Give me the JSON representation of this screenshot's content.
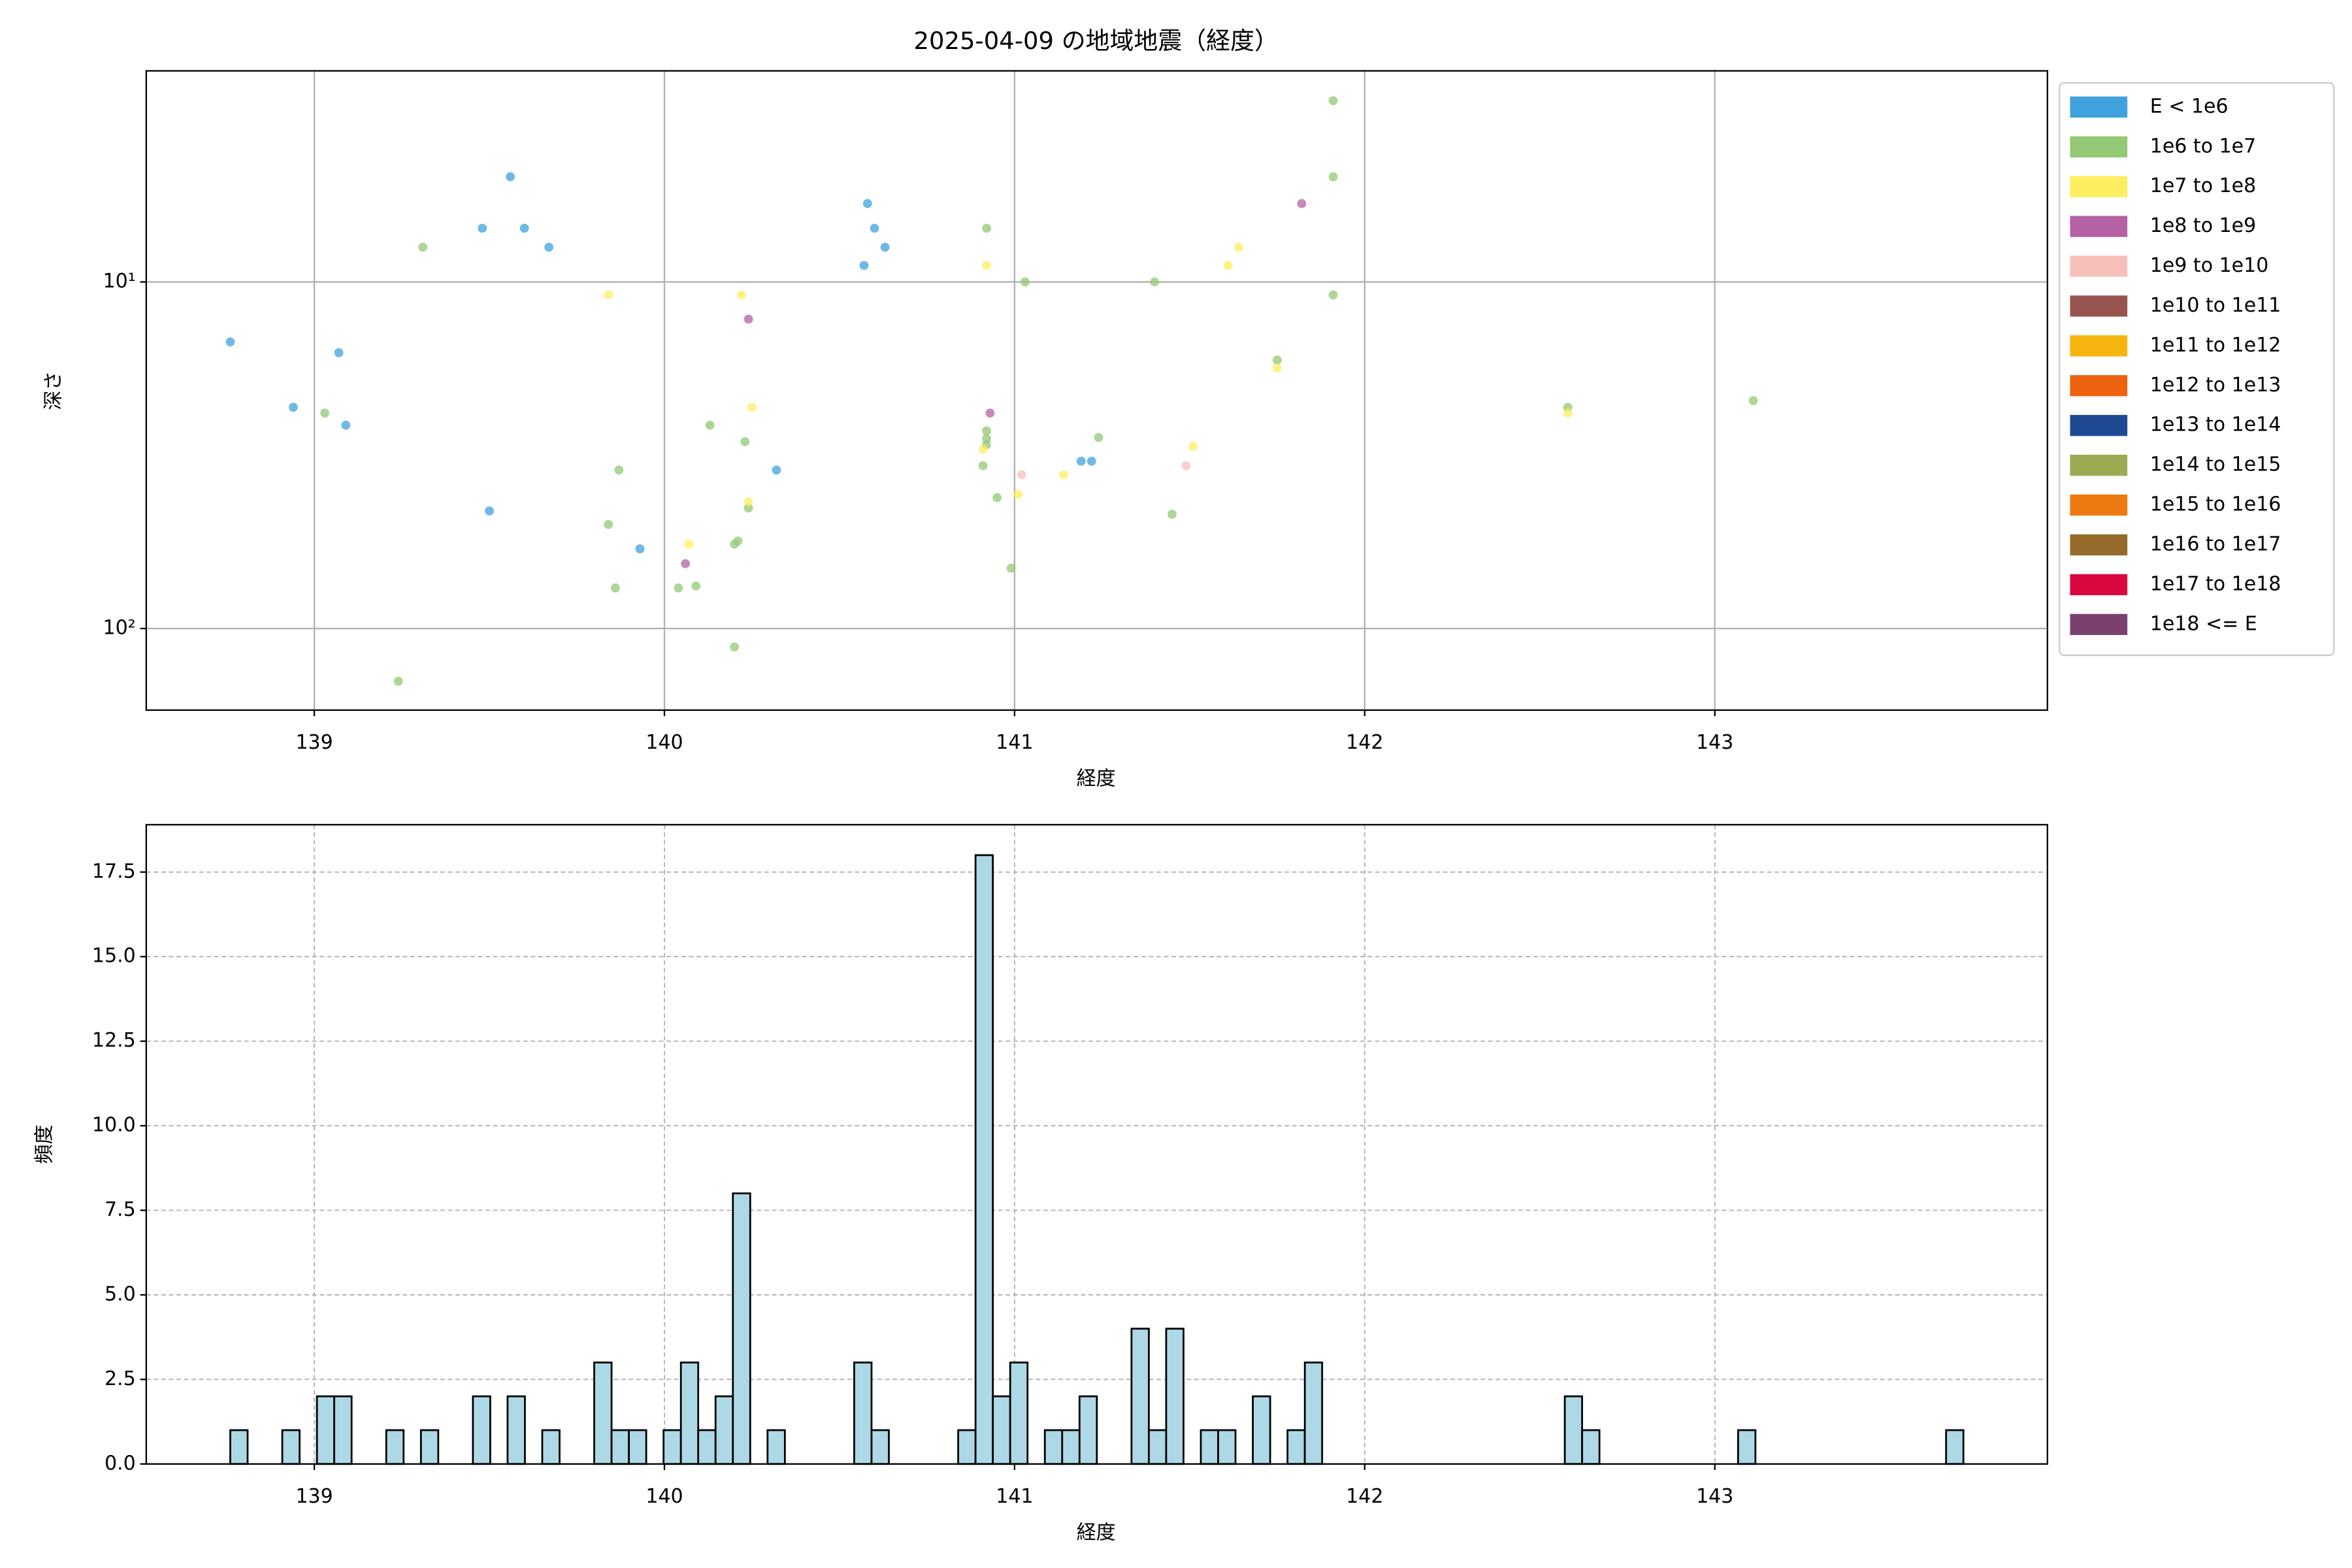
{
  "chart_data": [
    {
      "type": "scatter",
      "title": "2025-04-09 の地域地震（経度）",
      "x_label": "経度",
      "y_label": "深さ",
      "xlim": [
        138.52,
        143.95
      ],
      "xticks": [
        139,
        140,
        141,
        142,
        143
      ],
      "ylim": [
        2.46,
        172
      ],
      "y_log": true,
      "y_inverted": true,
      "yticks": [
        {
          "value": 10,
          "label": "10¹"
        },
        {
          "value": 100,
          "label": "10²"
        }
      ],
      "grid": true,
      "legend": "outside-right",
      "series": [
        {
          "name": "E < 1e6",
          "color": "#3fa2dd",
          "x": [
            138.76,
            138.94,
            139.07,
            139.09,
            139.48,
            139.56,
            139.6,
            139.67,
            139.5,
            139.93,
            140.32,
            140.58,
            140.57,
            140.6,
            140.63,
            141.19,
            141.22
          ],
          "values": [
            14.9,
            23.0,
            16.0,
            25.9,
            7.0,
            4.97,
            7.0,
            7.94,
            45.8,
            58.9,
            34.9,
            5.94,
            8.96,
            7.0,
            7.94,
            32.9,
            32.9
          ]
        },
        {
          "name": "1e6 to 1e7",
          "color": "#93c874",
          "x": [
            139.03,
            139.31,
            139.84,
            139.86,
            139.87,
            139.24,
            140.04,
            140.09,
            140.13,
            140.2,
            140.21,
            140.2,
            140.23,
            140.24,
            140.92,
            140.92,
            140.92,
            140.92,
            140.91,
            140.95,
            140.99,
            141.03,
            141.24,
            141.4,
            141.45,
            141.75,
            141.91,
            141.91,
            141.91,
            142.58,
            143.11
          ],
          "values": [
            23.9,
            7.94,
            50.1,
            76.4,
            34.9,
            142,
            76.4,
            75.4,
            25.9,
            57.1,
            55.9,
            113,
            28.9,
            44.9,
            7.0,
            26.9,
            28.3,
            29.5,
            33.9,
            41.9,
            67.0,
            10,
            28.1,
            10,
            46.8,
            16.8,
            3.0,
            4.97,
            10.9,
            23.0,
            22.0
          ]
        },
        {
          "name": "1e7 to 1e8",
          "color": "#fdee5f",
          "x": [
            139.84,
            140.07,
            140.22,
            140.25,
            140.24,
            140.92,
            140.91,
            141.01,
            141.14,
            141.51,
            141.61,
            141.64,
            141.75,
            142.58
          ],
          "values": [
            10.9,
            57.1,
            10.9,
            23.0,
            43.1,
            8.96,
            30.4,
            41.0,
            36.0,
            29.8,
            8.96,
            7.94,
            17.7,
            23.9
          ]
        },
        {
          "name": "1e8 to 1e9",
          "color": "#b462a4",
          "x": [
            140.24,
            140.06,
            140.93,
            141.82
          ],
          "values": [
            12.8,
            65.0,
            23.9,
            5.94
          ]
        },
        {
          "name": "1e9 to 1e10",
          "color": "#f6c0b9",
          "x": [
            141.02,
            141.49
          ],
          "values": [
            36.0,
            33.9
          ]
        },
        {
          "name": "1e10 to 1e11",
          "color": "#985550",
          "x": [],
          "values": []
        },
        {
          "name": "1e11 to 1e12",
          "color": "#f6b50e",
          "x": [],
          "values": []
        },
        {
          "name": "1e12 to 1e13",
          "color": "#ed620e",
          "x": [],
          "values": []
        },
        {
          "name": "1e13 to 1e14",
          "color": "#1f4a93",
          "x": [],
          "values": []
        },
        {
          "name": "1e14 to 1e15",
          "color": "#9aab52",
          "x": [],
          "values": []
        },
        {
          "name": "1e15 to 1e16",
          "color": "#ec7a10",
          "x": [],
          "values": []
        },
        {
          "name": "1e16 to 1e17",
          "color": "#956b2b",
          "x": [],
          "values": []
        },
        {
          "name": "1e17 to 1e18",
          "color": "#d9083e",
          "x": [],
          "values": []
        },
        {
          "name": "1e18 <= E",
          "color": "#7b416e",
          "x": [],
          "values": []
        }
      ]
    },
    {
      "type": "histogram",
      "x_label": "経度",
      "y_label": "頻度",
      "color": "#add8e6",
      "edge_color": "#000000",
      "xlim": [
        138.52,
        143.95
      ],
      "xticks": [
        139,
        140,
        141,
        142,
        143
      ],
      "ylim": [
        0,
        18.9
      ],
      "yticks": [
        {
          "value": 0,
          "label": "0.0"
        },
        2.5,
        {
          "value": 5,
          "label": "5.0"
        },
        7.5,
        {
          "value": 10,
          "label": "10.0"
        },
        12.5,
        {
          "value": 15,
          "label": "15.0"
        },
        17.5
      ],
      "grid": true,
      "bins": [
        138.76,
        138.8095,
        138.859,
        138.9085,
        138.958,
        139.0075,
        139.057,
        139.1065,
        139.156,
        139.2055,
        139.255,
        139.3045,
        139.354,
        139.4035,
        139.453,
        139.5025,
        139.552,
        139.6015,
        139.651,
        139.7005,
        139.75,
        139.7995,
        139.849,
        139.8985,
        139.948,
        139.9975,
        140.047,
        140.0965,
        140.146,
        140.1955,
        140.245,
        140.2945,
        140.344,
        140.3935,
        140.443,
        140.4925,
        140.542,
        140.5915,
        140.641,
        140.6905,
        140.74,
        140.7895,
        140.839,
        140.8885,
        140.938,
        140.9875,
        141.037,
        141.0865,
        141.136,
        141.1855,
        141.235,
        141.2845,
        141.334,
        141.3835,
        141.433,
        141.4825,
        141.532,
        141.5815,
        141.631,
        141.6805,
        141.73,
        141.7795,
        141.829,
        141.8785,
        141.928,
        141.9775,
        142.027,
        142.0765,
        142.126,
        142.1755,
        142.225,
        142.2745,
        142.324,
        142.3735,
        142.423,
        142.4725,
        142.522,
        142.5715,
        142.621,
        142.6705,
        142.72,
        142.7695,
        142.819,
        142.8685,
        142.918,
        142.9675,
        143.017,
        143.0665,
        143.116,
        143.1655,
        143.215,
        143.2645,
        143.314,
        143.3635,
        143.413,
        143.4625,
        143.512,
        143.5615,
        143.611,
        143.6605,
        143.71
      ],
      "values": [
        1,
        0,
        0,
        1,
        0,
        2,
        2,
        0,
        0,
        1,
        0,
        1,
        0,
        0,
        2,
        0,
        2,
        0,
        1,
        0,
        0,
        3,
        1,
        1,
        0,
        1,
        3,
        1,
        2,
        8,
        0,
        1,
        0,
        0,
        0,
        0,
        3,
        1,
        0,
        0,
        0,
        0,
        1,
        18,
        2,
        3,
        0,
        1,
        1,
        2,
        0,
        0,
        4,
        1,
        4,
        0,
        1,
        1,
        0,
        2,
        0,
        1,
        3,
        0,
        0,
        0,
        0,
        0,
        0,
        0,
        0,
        0,
        0,
        0,
        0,
        0,
        0,
        2,
        1,
        0,
        0,
        0,
        0,
        0,
        0,
        0,
        0,
        1,
        0,
        0,
        0,
        0,
        0,
        0,
        0,
        0,
        0,
        0,
        0,
        1
      ]
    }
  ]
}
